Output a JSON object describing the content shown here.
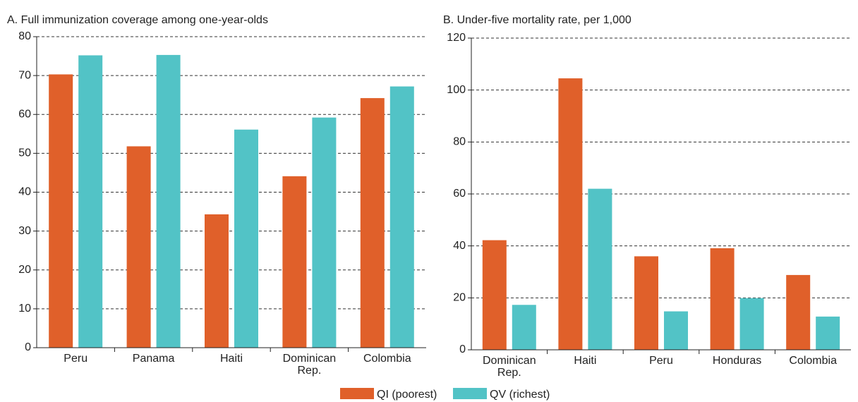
{
  "chart_data": [
    {
      "type": "bar",
      "title": "A. Full immunization coverage among one-year-olds",
      "categories": [
        "Peru",
        "Panama",
        "Haiti",
        "Dominican Rep.",
        "Colombia"
      ],
      "series": [
        {
          "name": "QI (poorest)",
          "color": "#e0602a",
          "values": [
            70.3,
            51.8,
            34.3,
            44.1,
            64.2
          ]
        },
        {
          "name": "QV (richest)",
          "color": "#52c3c6",
          "values": [
            75.2,
            75.3,
            56.1,
            59.2,
            67.2
          ]
        }
      ],
      "ylim": [
        0,
        80
      ],
      "yticks": [
        0,
        10,
        20,
        30,
        40,
        50,
        60,
        70,
        80
      ],
      "grid": true
    },
    {
      "type": "bar",
      "title": "B. Under-five mortality rate, per 1,000",
      "categories": [
        "Dominican Rep.",
        "Haiti",
        "Peru",
        "Honduras",
        "Colombia"
      ],
      "series": [
        {
          "color": "#e0602a",
          "values": [
            42.2,
            104.5,
            36,
            39.1,
            28.8
          ]
        },
        {
          "color": "#52c3c6",
          "values": [
            17.3,
            62,
            14.8,
            19.9,
            12.8
          ]
        }
      ],
      "ylim": [
        0,
        120
      ],
      "yticks": [
        0,
        20,
        40,
        60,
        80,
        100,
        120
      ],
      "grid": true
    }
  ]
}
